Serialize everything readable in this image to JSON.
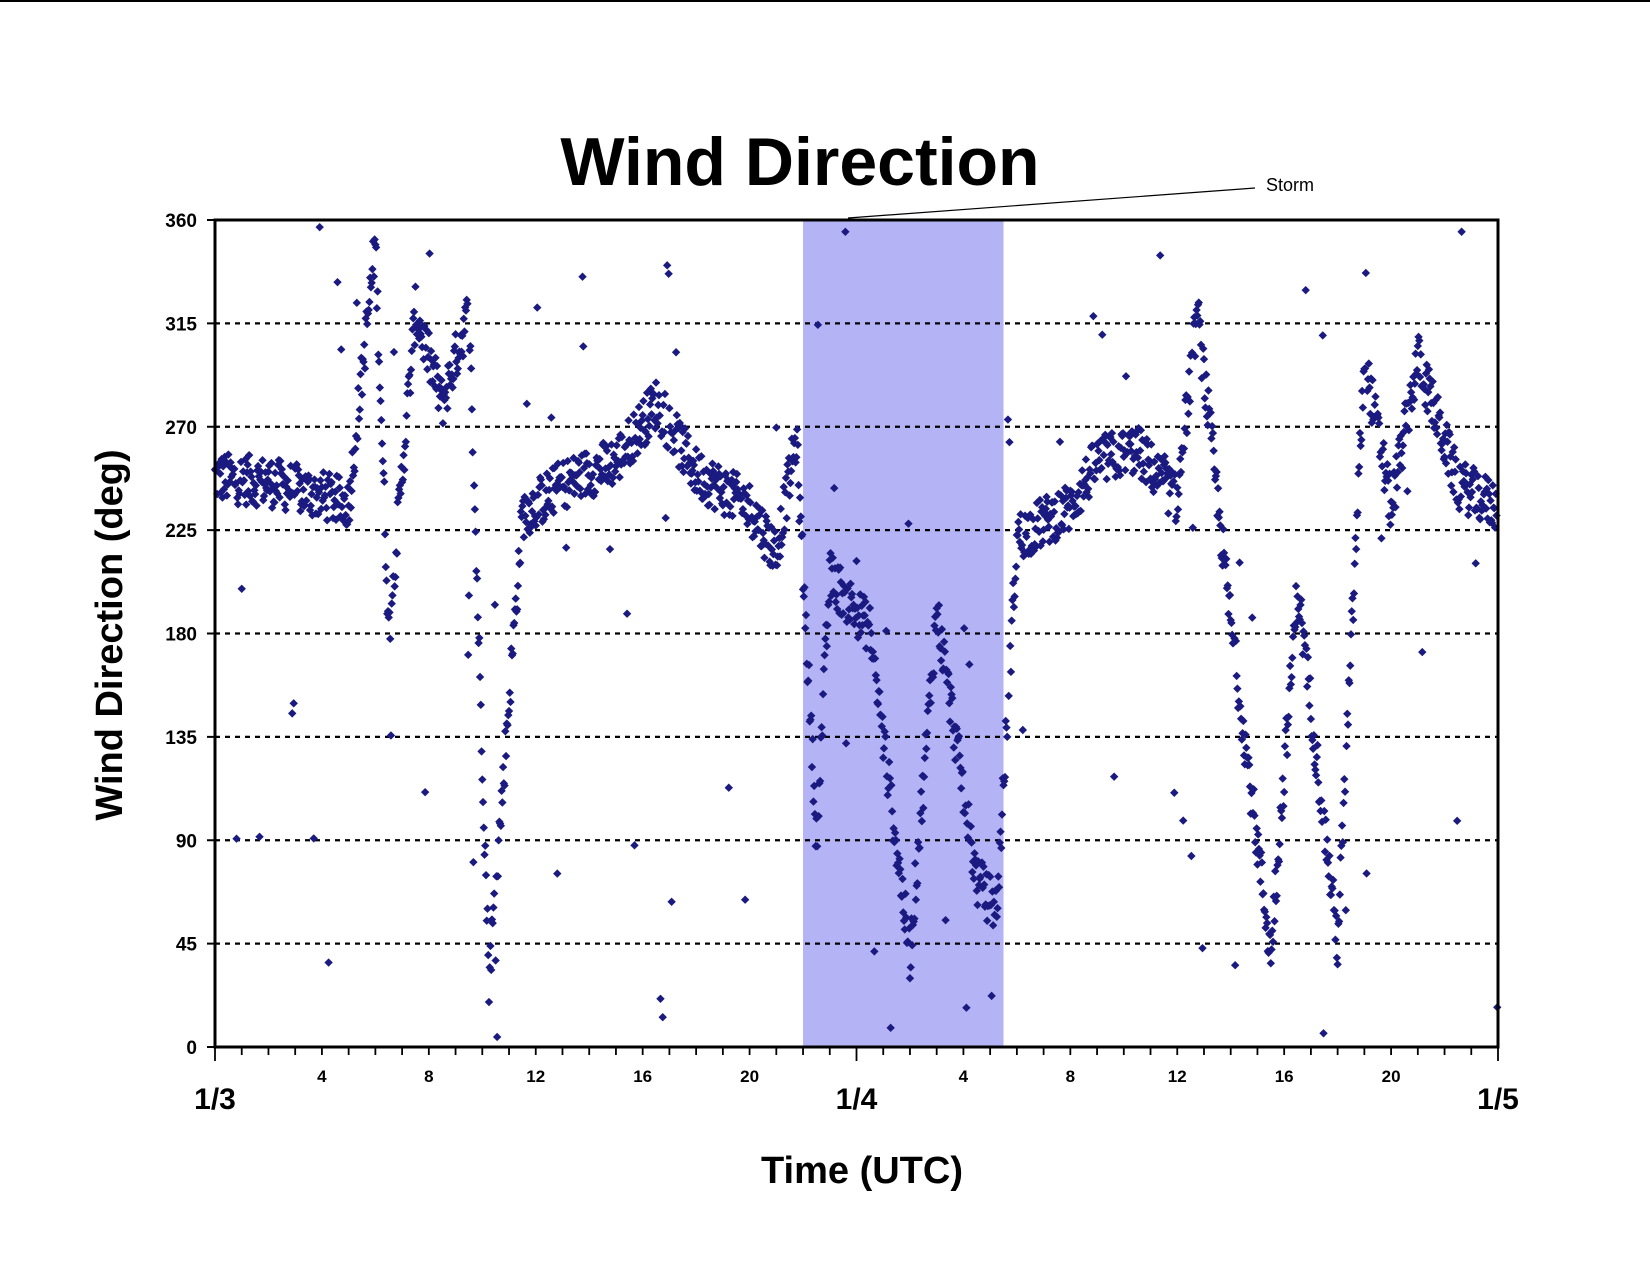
{
  "chart_data": {
    "type": "scatter",
    "title": "Wind Direction",
    "xlabel": "Time (UTC)",
    "ylabel": "Wind Direction (deg)",
    "ylim": [
      0,
      360
    ],
    "xlim": [
      "1/3 00:00",
      "1/5 00:00"
    ],
    "yticks": [
      "0",
      "45",
      "90",
      "135",
      "180",
      "225",
      "270",
      "315",
      "360"
    ],
    "hour_ticks": [
      {
        "day": 0,
        "hour": 4,
        "label": "4"
      },
      {
        "day": 0,
        "hour": 8,
        "label": "8"
      },
      {
        "day": 0,
        "hour": 12,
        "label": "12"
      },
      {
        "day": 0,
        "hour": 16,
        "label": "16"
      },
      {
        "day": 0,
        "hour": 20,
        "label": "20"
      },
      {
        "day": 1,
        "hour": 4,
        "label": "4"
      },
      {
        "day": 1,
        "hour": 8,
        "label": "8"
      },
      {
        "day": 1,
        "hour": 12,
        "label": "12"
      },
      {
        "day": 1,
        "hour": 16,
        "label": "16"
      },
      {
        "day": 1,
        "hour": 20,
        "label": "20"
      }
    ],
    "day_labels": [
      "1/3",
      "1/4",
      "1/5"
    ],
    "grid": "horizontal dotted",
    "marker_color": "#1a1a80",
    "storm": {
      "label": "Storm",
      "start": "1/3 22:00",
      "end": "1/4 05:30",
      "color": "#b3b3f5"
    },
    "series_description_points": [
      {
        "x": "1/3 00:00",
        "y": 248
      },
      {
        "x": "1/3 02:00",
        "y": 246
      },
      {
        "x": "1/3 04:00",
        "y": 240
      },
      {
        "x": "1/3 05:00",
        "y": 236
      },
      {
        "x": "1/3 06:00",
        "y": 350
      },
      {
        "x": "1/3 06:30",
        "y": 180
      },
      {
        "x": "1/3 07:30",
        "y": 320
      },
      {
        "x": "1/3 08:30",
        "y": 280
      },
      {
        "x": "1/3 09:30",
        "y": 320
      },
      {
        "x": "1/3 10:15",
        "y": 30
      },
      {
        "x": "1/3 11:30",
        "y": 232
      },
      {
        "x": "1/3 13:00",
        "y": 245
      },
      {
        "x": "1/3 15:00",
        "y": 255
      },
      {
        "x": "1/3 16:30",
        "y": 280
      },
      {
        "x": "1/3 18:00",
        "y": 250
      },
      {
        "x": "1/3 20:00",
        "y": 235
      },
      {
        "x": "1/3 21:00",
        "y": 215
      },
      {
        "x": "1/3 21:45",
        "y": 265
      },
      {
        "x": "1/3 22:30",
        "y": 92
      },
      {
        "x": "1/3 23:00",
        "y": 205
      },
      {
        "x": "1/4 00:30",
        "y": 182
      },
      {
        "x": "1/4 02:00",
        "y": 40
      },
      {
        "x": "1/4 03:00",
        "y": 190
      },
      {
        "x": "1/4 04:30",
        "y": 72
      },
      {
        "x": "1/4 05:15",
        "y": 60
      },
      {
        "x": "1/4 06:00",
        "y": 222
      },
      {
        "x": "1/4 08:00",
        "y": 235
      },
      {
        "x": "1/4 09:00",
        "y": 255
      },
      {
        "x": "1/4 10:30",
        "y": 260
      },
      {
        "x": "1/4 12:00",
        "y": 238
      },
      {
        "x": "1/4 12:45",
        "y": 320
      },
      {
        "x": "1/4 14:00",
        "y": 185
      },
      {
        "x": "1/4 15:30",
        "y": 40
      },
      {
        "x": "1/4 16:30",
        "y": 200
      },
      {
        "x": "1/4 18:00",
        "y": 45
      },
      {
        "x": "1/4 19:00",
        "y": 300
      },
      {
        "x": "1/4 20:00",
        "y": 235
      },
      {
        "x": "1/4 21:00",
        "y": 300
      },
      {
        "x": "1/4 22:30",
        "y": 245
      },
      {
        "x": "1/4 24:00",
        "y": 235
      }
    ]
  }
}
